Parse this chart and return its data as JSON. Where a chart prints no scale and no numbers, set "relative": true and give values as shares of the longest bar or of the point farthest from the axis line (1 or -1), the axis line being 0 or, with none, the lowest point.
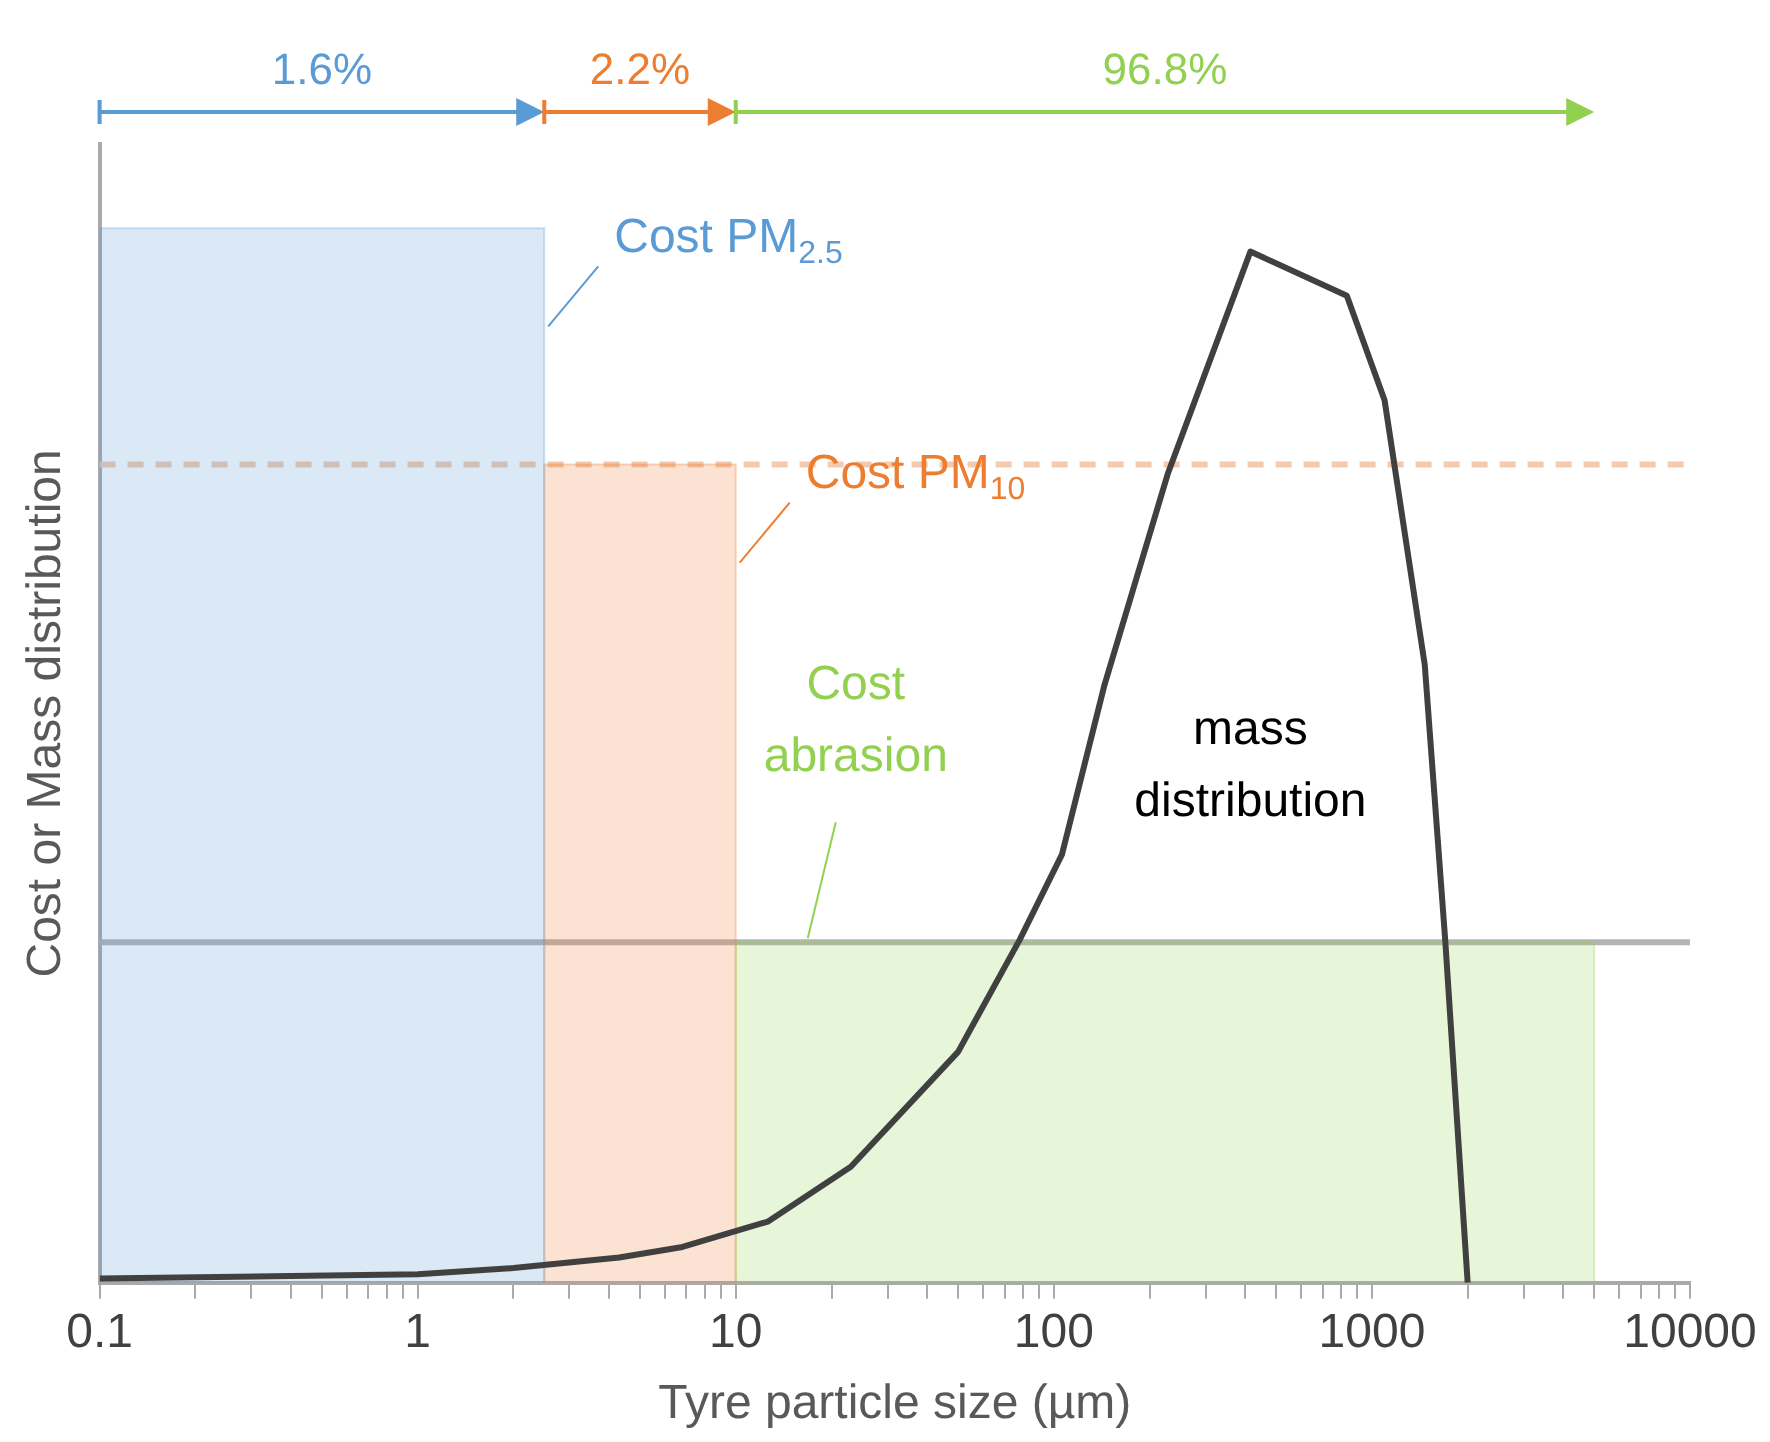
{
  "chart_data": {
    "type": "histogram",
    "relative": true,
    "xlabel": "Tyre particle size (µm)",
    "ylabel": "Cost or Mass distribution",
    "log": "x",
    "xlim": [
      0.1,
      10000
    ],
    "xticks": [
      0.1,
      {
        "value": 0.2,
        "label": null
      },
      {
        "value": 0.3,
        "label": null
      },
      {
        "value": 0.4,
        "label": null
      },
      {
        "value": 0.5,
        "label": null
      },
      {
        "value": 0.6,
        "label": null
      },
      {
        "value": 0.7,
        "label": null
      },
      {
        "value": 0.8,
        "label": null
      },
      {
        "value": 0.9,
        "label": null
      },
      1,
      {
        "value": 2,
        "label": null
      },
      {
        "value": 3,
        "label": null
      },
      {
        "value": 4,
        "label": null
      },
      {
        "value": 5,
        "label": null
      },
      {
        "value": 6,
        "label": null
      },
      {
        "value": 7,
        "label": null
      },
      {
        "value": 8,
        "label": null
      },
      {
        "value": 9,
        "label": null
      },
      10,
      {
        "value": 20,
        "label": null
      },
      {
        "value": 30,
        "label": null
      },
      {
        "value": 40,
        "label": null
      },
      {
        "value": 50,
        "label": null
      },
      {
        "value": 60,
        "label": null
      },
      {
        "value": 70,
        "label": null
      },
      {
        "value": 80,
        "label": null
      },
      {
        "value": 90,
        "label": null
      },
      100,
      {
        "value": 200,
        "label": null
      },
      {
        "value": 300,
        "label": null
      },
      {
        "value": 400,
        "label": null
      },
      {
        "value": 500,
        "label": null
      },
      {
        "value": 600,
        "label": null
      },
      {
        "value": 700,
        "label": null
      },
      {
        "value": 800,
        "label": null
      },
      {
        "value": 900,
        "label": null
      },
      1000,
      {
        "value": 2000,
        "label": null
      },
      {
        "value": 3000,
        "label": null
      },
      {
        "value": 4000,
        "label": null
      },
      {
        "value": 5000,
        "label": null
      },
      {
        "value": 6000,
        "label": null
      },
      {
        "value": 7000,
        "label": null
      },
      {
        "value": 8000,
        "label": null
      },
      {
        "value": 9000,
        "label": null
      },
      10000
    ],
    "tick_labels": "x",
    "legend": false,
    "series": [
      {
        "bins": [
          0.1,
          2.5,
          10,
          5000
        ],
        "values": [
          1,
          0.776,
          0.323
        ],
        "colors": [
          "#5b9bd5",
          "#ed7d31",
          "#92d050"
        ]
      },
      {
        "type": "line",
        "name": "mass distribution",
        "color": "#404040",
        "x": [
          0.1,
          1,
          2,
          4.3,
          6.8,
          12.6,
          23,
          50,
          78,
          106,
          144,
          228,
          415,
          834,
          1096,
          1466,
          1700,
          2000
        ],
        "values": [
          0.004,
          0.008,
          0.014,
          0.024,
          0.034,
          0.058,
          0.11,
          0.219,
          0.325,
          0.406,
          0.566,
          0.767,
          0.978,
          0.936,
          0.837,
          0.586,
          0.325,
          0
        ]
      }
    ],
    "ref_lines": [
      {
        "axis": "y",
        "value": 0.776,
        "color": "#f4c9ad",
        "line_style": "dashed"
      },
      {
        "axis": "y",
        "value": 0.323,
        "color": "#b4b4b4",
        "line_style": "solid"
      }
    ],
    "annotations": [
      "1.6%",
      "2.2%",
      "96.8%",
      "Cost PM$_{2.5}$",
      "Cost PM$_{10}$",
      "Cost\nabrasion"
    ]
  }
}
